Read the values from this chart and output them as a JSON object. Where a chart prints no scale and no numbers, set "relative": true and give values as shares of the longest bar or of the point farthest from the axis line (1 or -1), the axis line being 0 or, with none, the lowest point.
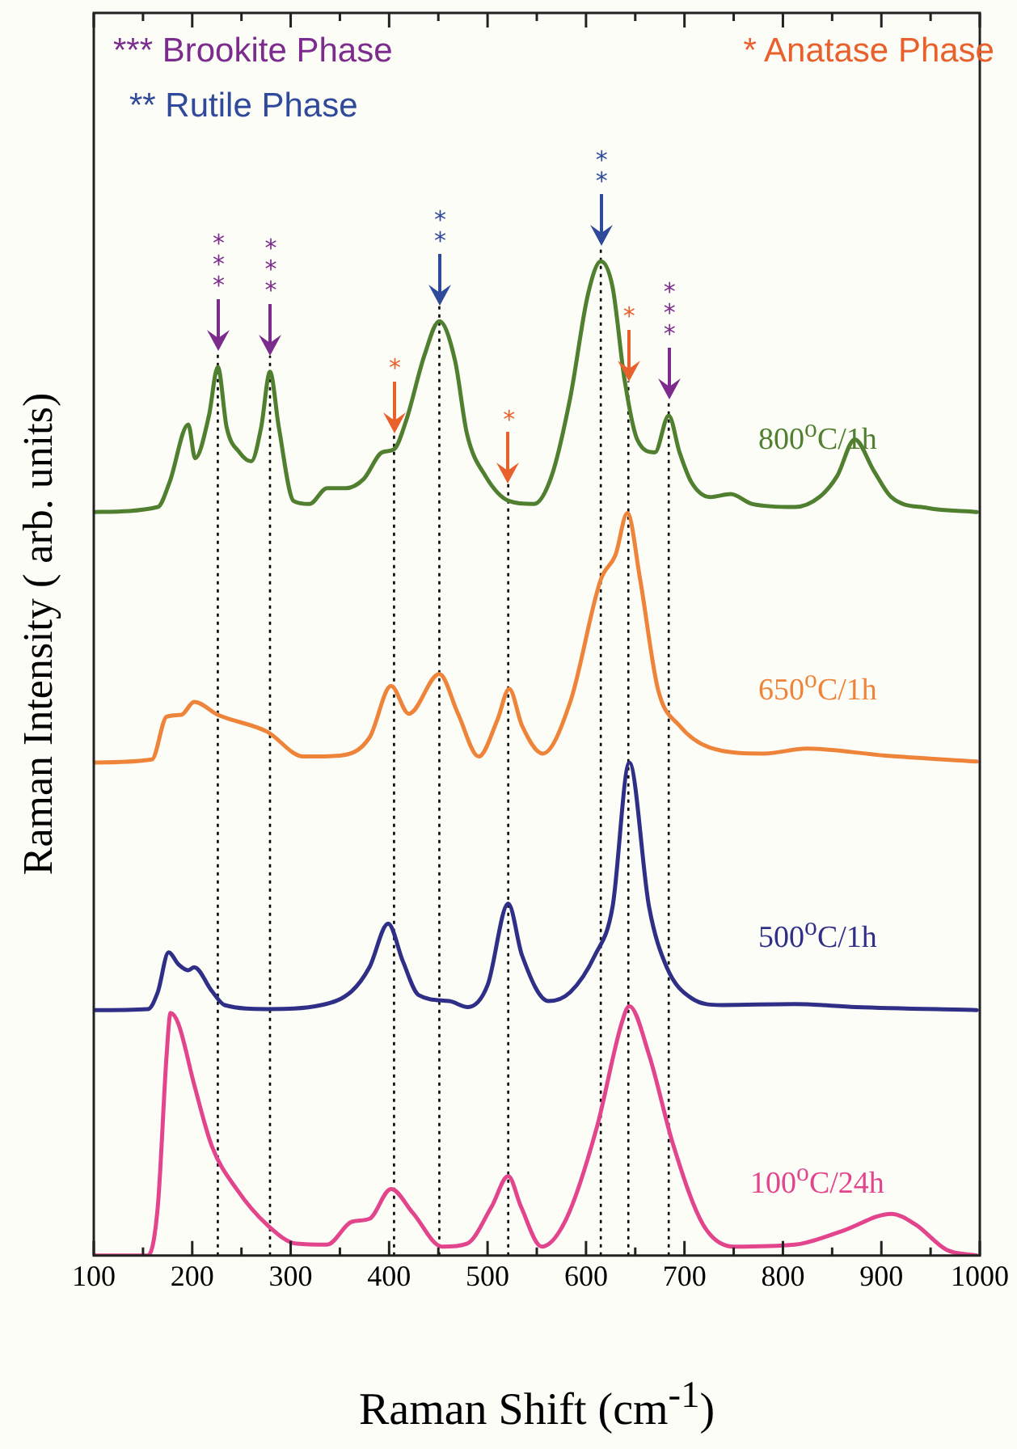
{
  "chart_data": {
    "type": "line",
    "relative": true,
    "xlabel": "Raman Shift (cm$^{-1}$)",
    "ylabel": "Raman Intensity ( arb. units)",
    "xlim": [
      100,
      1000
    ],
    "xticks": [
      100,
      {
        "value": 150,
        "label": null
      },
      200,
      {
        "value": 250,
        "label": null
      },
      300,
      {
        "value": 350,
        "label": null
      },
      400,
      {
        "value": 450,
        "label": null
      },
      500,
      {
        "value": 550,
        "label": null
      },
      600,
      {
        "value": 650,
        "label": null
      },
      700,
      {
        "value": 750,
        "label": null
      },
      800,
      {
        "value": 850,
        "label": null
      },
      900,
      {
        "value": 950,
        "label": null
      },
      1000
    ],
    "grid": false,
    "legend": false,
    "marker": "none",
    "line_style": "solid",
    "series": [
      {
        "name": "800$^{o}$C/1h",
        "color": "#4f7f2f",
        "x": [
          100,
          165,
          177,
          196,
          203,
          217,
          226,
          235,
          248,
          260,
          270,
          279,
          288,
          303,
          319,
          337,
          356,
          374,
          393,
          405,
          417,
          436,
          451,
          467,
          479,
          498,
          522,
          547,
          565,
          584,
          602,
          615,
          627,
          639,
          652,
          670,
          684,
          695,
          707,
          726,
          747,
          769,
          812,
          837,
          855,
          873,
          892,
          910,
          947,
          997
        ],
        "values": [
          0.748,
          0.753,
          0.778,
          0.836,
          0.802,
          0.845,
          0.894,
          0.833,
          0.808,
          0.799,
          0.833,
          0.889,
          0.833,
          0.759,
          0.756,
          0.772,
          0.772,
          0.781,
          0.808,
          0.811,
          0.839,
          0.906,
          0.94,
          0.9,
          0.827,
          0.784,
          0.759,
          0.756,
          0.784,
          0.863,
          0.967,
          1,
          0.974,
          0.882,
          0.821,
          0.808,
          0.845,
          0.808,
          0.778,
          0.763,
          0.766,
          0.756,
          0.753,
          0.763,
          0.784,
          0.821,
          0.79,
          0.763,
          0.752,
          0.748
        ]
      },
      {
        "name": "650$^{o}$C/1h",
        "color": "#ee8439",
        "x": [
          100,
          159,
          174,
          189,
          202,
          226,
          276,
          313,
          350,
          380,
          402,
          420,
          451,
          470,
          491,
          510,
          522,
          535,
          556,
          584,
          615,
          630,
          642,
          655,
          673,
          695,
          726,
          781,
          824,
          904,
          997
        ],
        "values": [
          0.496,
          0.499,
          0.542,
          0.544,
          0.557,
          0.544,
          0.527,
          0.502,
          0.503,
          0.521,
          0.573,
          0.545,
          0.585,
          0.545,
          0.502,
          0.539,
          0.57,
          0.533,
          0.505,
          0.557,
          0.68,
          0.705,
          0.747,
          0.68,
          0.57,
          0.533,
          0.511,
          0.505,
          0.51,
          0.503,
          0.497
        ]
      },
      {
        "name": "500$^{o}$C/1h",
        "color": "#2f2f88",
        "x": [
          100,
          155,
          165,
          176,
          186,
          196,
          202,
          220,
          233,
          276,
          331,
          362,
          380,
          399,
          414,
          430,
          461,
          480,
          500,
          521,
          535,
          562,
          584,
          609,
          627,
          644,
          664,
          682,
          707,
          738,
          812,
          874,
          997
        ],
        "values": [
          0.247,
          0.248,
          0.265,
          0.305,
          0.293,
          0.287,
          0.29,
          0.266,
          0.252,
          0.248,
          0.252,
          0.266,
          0.29,
          0.334,
          0.296,
          0.262,
          0.256,
          0.25,
          0.272,
          0.354,
          0.302,
          0.256,
          0.265,
          0.302,
          0.351,
          0.496,
          0.351,
          0.29,
          0.259,
          0.252,
          0.253,
          0.25,
          0.247
        ]
      },
      {
        "name": "100$^{o}$C/24h",
        "color": "#e2458c",
        "x": [
          100,
          155,
          165,
          174,
          178,
          186,
          202,
          220,
          245,
          276,
          306,
          337,
          362,
          380,
          402,
          424,
          454,
          479,
          504,
          521,
          534,
          555,
          580,
          611,
          636,
          644,
          664,
          689,
          719,
          750,
          812,
          861,
          910,
          935,
          966,
          997
        ],
        "values": [
          0,
          0,
          0.049,
          0.202,
          0.244,
          0.233,
          0.172,
          0.11,
          0.067,
          0.031,
          0.012,
          0.011,
          0.034,
          0.037,
          0.067,
          0.043,
          0.009,
          0.012,
          0.049,
          0.08,
          0.049,
          0.009,
          0.037,
          0.129,
          0.233,
          0.251,
          0.202,
          0.11,
          0.031,
          0.009,
          0.011,
          0.025,
          0.042,
          0.031,
          0.006,
          0
        ]
      }
    ],
    "ref_lines": [
      {
        "axis": "x",
        "value": 226,
        "label": "***",
        "line_style": "dotted",
        "color": "#000000"
      },
      {
        "axis": "x",
        "value": 279,
        "label": "***",
        "line_style": "dotted",
        "color": "#000000"
      },
      {
        "axis": "x",
        "value": 405,
        "label": "*",
        "line_style": "dotted",
        "color": "#000000"
      },
      {
        "axis": "x",
        "value": 451,
        "label": "**",
        "line_style": "dotted",
        "color": "#000000"
      },
      {
        "axis": "x",
        "value": 521,
        "label": "*",
        "line_style": "dotted",
        "color": "#000000"
      },
      {
        "axis": "x",
        "value": 615,
        "label": "**",
        "line_style": "dotted",
        "color": "#000000"
      },
      {
        "axis": "x",
        "value": 643,
        "label": "*",
        "line_style": "dotted",
        "color": "#000000"
      },
      {
        "axis": "x",
        "value": 684,
        "label": "***",
        "line_style": "dotted",
        "color": "#000000"
      }
    ],
    "annotations": [
      "*** Brookite Phase",
      "** Rutile Phase",
      "* Anatase Phase"
    ]
  }
}
